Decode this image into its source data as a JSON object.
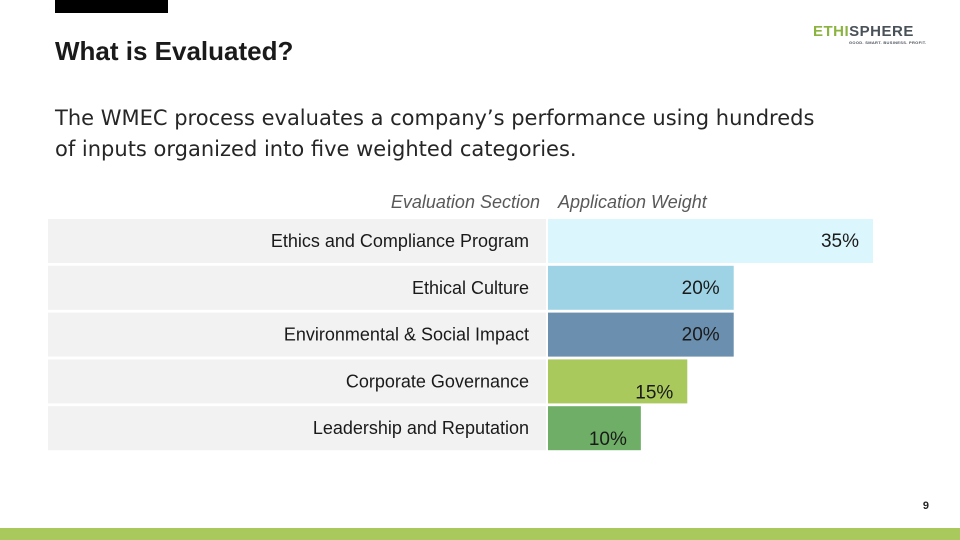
{
  "slide": {
    "title": "What is Evaluated?",
    "intro": "The WMEC process evaluates a company’s performance using hundreds of inputs organized into five weighted categories.",
    "page_number": "9"
  },
  "logo": {
    "name": "ETHISPHERE",
    "part_green": "ETHI",
    "part_dark": "SPHERE",
    "tagline": "GOOD. SMART. BUSINESS. PROFIT."
  },
  "colors": {
    "top_bar": "#000000",
    "bottom_bar": "#a9c95c",
    "label_band": "#f2f2f2"
  },
  "chart_data": {
    "type": "bar",
    "orientation": "horizontal",
    "column_headers": [
      "Evaluation Section",
      "Application Weight"
    ],
    "categories": [
      "Ethics and Compliance Program",
      "Ethical Culture",
      "Environmental & Social Impact",
      "Corporate Governance",
      "Leadership and Reputation"
    ],
    "values": [
      35,
      20,
      20,
      15,
      10
    ],
    "value_labels": [
      "35%",
      "20%",
      "20%",
      "15%",
      "10%"
    ],
    "bar_colors": [
      "#dbf7fd",
      "#9ed3e6",
      "#6b8fae",
      "#a9c95c",
      "#6fae66"
    ],
    "xlim": [
      0,
      35
    ],
    "unit": "%",
    "grid": false,
    "legend": "none"
  }
}
